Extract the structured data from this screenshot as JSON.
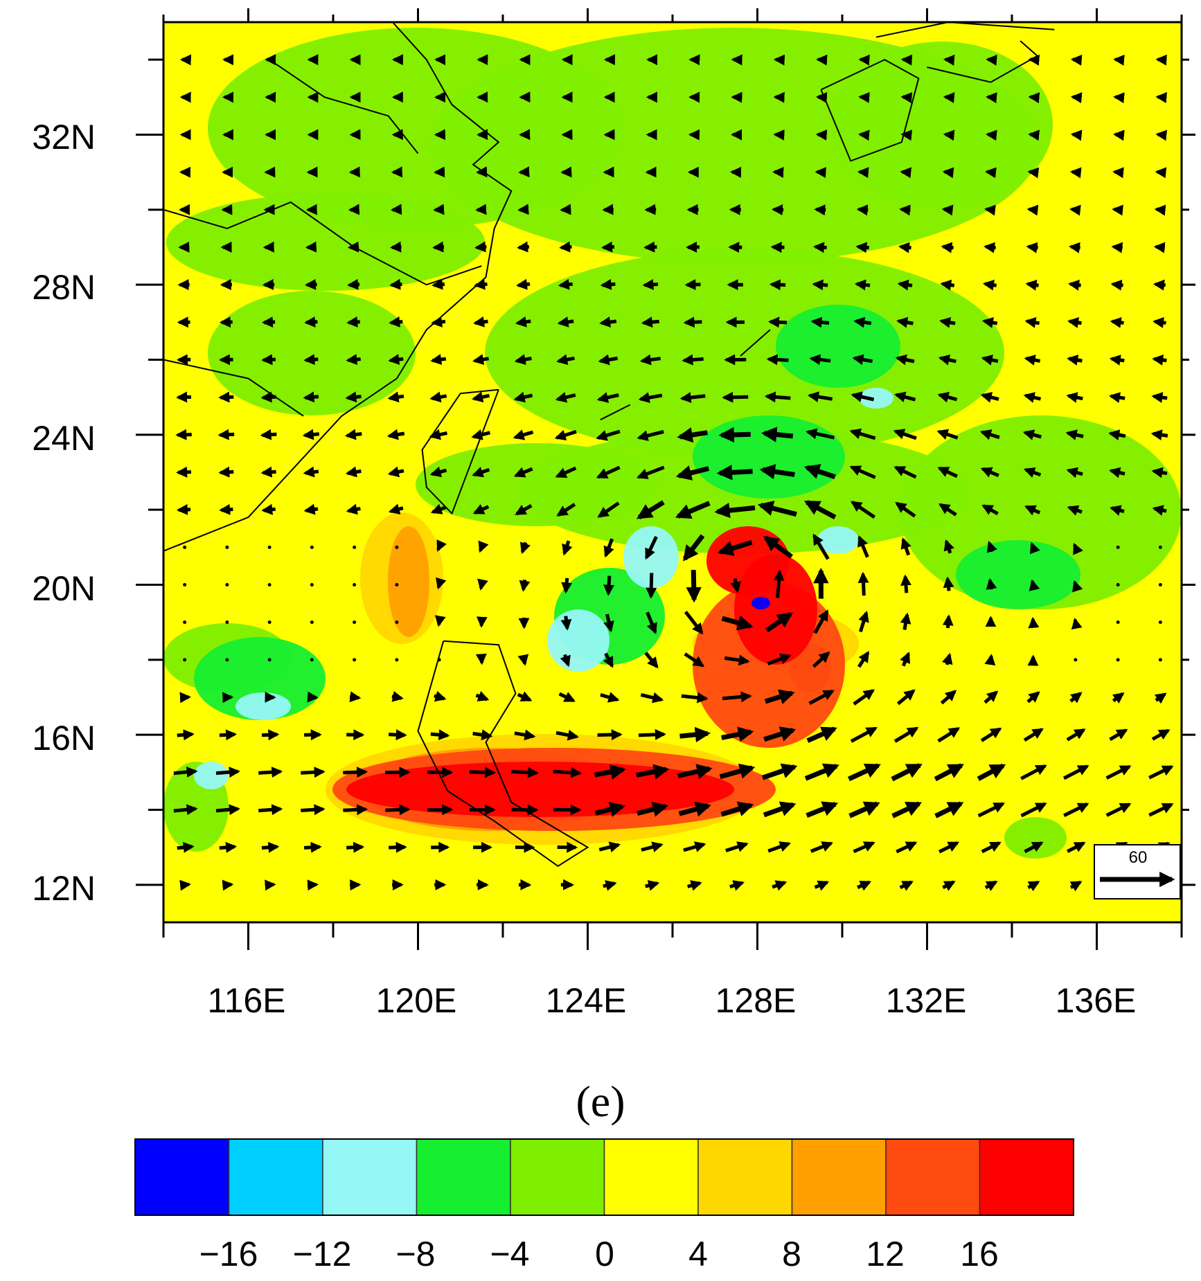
{
  "map": {
    "lon_range": [
      114,
      138
    ],
    "lat_range": [
      11,
      35
    ],
    "lon_ticks": [
      "116E",
      "120E",
      "124E",
      "128E",
      "132E",
      "136E"
    ],
    "lon_tick_values": [
      116,
      120,
      124,
      128,
      132,
      136
    ],
    "lat_ticks": [
      "32N",
      "28N",
      "24N",
      "20N",
      "16N",
      "12N"
    ],
    "lat_tick_values": [
      32,
      28,
      24,
      20,
      16,
      12
    ],
    "typhoon_center": [
      127.8,
      20.1
    ],
    "reference_vector": {
      "label": "60",
      "magnitude": 60
    },
    "field_description_visible": false
  },
  "panel_label": "(e)",
  "colorbar": {
    "colors": [
      "#0000ff",
      "#00d0ff",
      "#96f7f7",
      "#16ee30",
      "#80ee00",
      "#ffff00",
      "#ffd700",
      "#ffa000",
      "#ff4a10",
      "#ff0000"
    ],
    "tick_labels": [
      "−16",
      "−12",
      "−8",
      "−4",
      "0",
      "4",
      "8",
      "12",
      "16"
    ]
  }
}
